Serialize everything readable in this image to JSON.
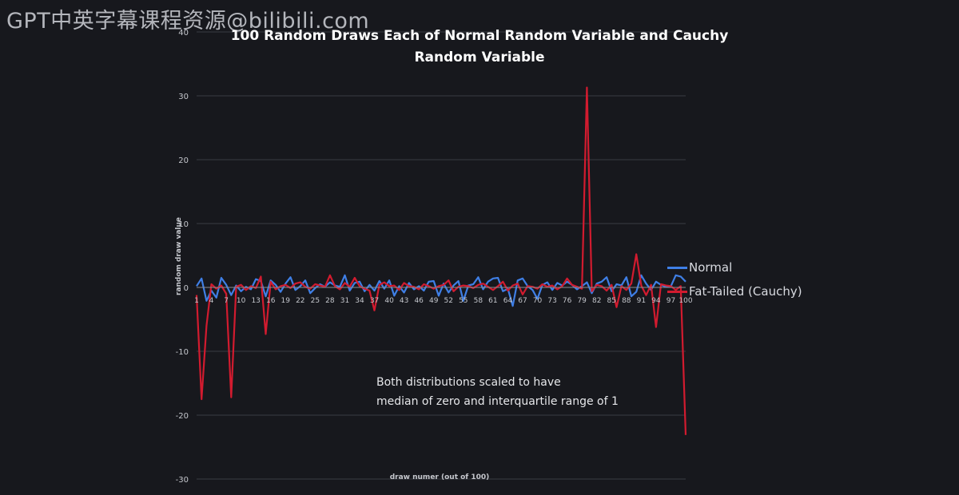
{
  "watermark": "GPT中英字幕课程资源@bilibili.com",
  "chart_data": {
    "type": "line",
    "title_line1": "100 Random Draws Each of Normal Random Variable and Cauchy",
    "title_line2": "Random Variable",
    "xlabel": "draw numer (out of 100)",
    "ylabel": "random draw value",
    "ylim": [
      -30,
      40
    ],
    "yticks": [
      -30,
      -20,
      -10,
      0,
      10,
      20,
      30,
      40
    ],
    "x": [
      1,
      2,
      3,
      4,
      5,
      6,
      7,
      8,
      9,
      10,
      11,
      12,
      13,
      14,
      15,
      16,
      17,
      18,
      19,
      20,
      21,
      22,
      23,
      24,
      25,
      26,
      27,
      28,
      29,
      30,
      31,
      32,
      33,
      34,
      35,
      36,
      37,
      38,
      39,
      40,
      41,
      42,
      43,
      44,
      45,
      46,
      47,
      48,
      49,
      50,
      51,
      52,
      53,
      54,
      55,
      56,
      57,
      58,
      59,
      60,
      61,
      62,
      63,
      64,
      65,
      66,
      67,
      68,
      69,
      70,
      71,
      72,
      73,
      74,
      75,
      76,
      77,
      78,
      79,
      80,
      81,
      82,
      83,
      84,
      85,
      86,
      87,
      88,
      89,
      90,
      91,
      92,
      93,
      94,
      95,
      96,
      97,
      98,
      99,
      100
    ],
    "xtick_labels": [
      "1",
      "4",
      "7",
      "10",
      "13",
      "16",
      "19",
      "22",
      "25",
      "28",
      "31",
      "34",
      "37",
      "40",
      "43",
      "46",
      "49",
      "52",
      "55",
      "58",
      "61",
      "64",
      "67",
      "70",
      "73",
      "76",
      "79",
      "82",
      "85",
      "88",
      "91",
      "94",
      "97",
      "100"
    ],
    "grid": true,
    "legend_position": "right",
    "series": [
      {
        "name": "Normal",
        "color": "#3f7fe6",
        "values": [
          0.2,
          1.4,
          -2.1,
          -0.5,
          -1.6,
          1.5,
          0.4,
          -1.2,
          0.3,
          -0.6,
          0.1,
          -0.3,
          1.3,
          1.0,
          -1.4,
          1.1,
          0.4,
          -0.7,
          0.6,
          1.6,
          -0.4,
          0.2,
          1.1,
          -0.9,
          -0.1,
          0.5,
          0.1,
          0.8,
          0.3,
          0.1,
          1.9,
          -0.5,
          0.7,
          0.9,
          -0.6,
          0.4,
          -0.5,
          1.0,
          -0.2,
          1.1,
          -1.3,
          0.2,
          -0.8,
          0.7,
          -0.3,
          0.2,
          -0.5,
          0.9,
          1.0,
          -1.3,
          0.6,
          -0.8,
          0.3,
          1.0,
          -2.1,
          0.3,
          0.5,
          1.6,
          -0.3,
          0.9,
          1.4,
          1.5,
          -0.6,
          -0.2,
          -2.9,
          1.1,
          1.4,
          0.2,
          -0.4,
          -1.8,
          0.4,
          0.8,
          -0.4,
          0.7,
          0.3,
          0.9,
          0.4,
          -0.3,
          0.2,
          0.8,
          -0.9,
          0.6,
          0.9,
          1.6,
          -0.6,
          0.5,
          0.3,
          1.6,
          -1.4,
          -0.7,
          1.9,
          0.6,
          -0.4,
          0.9,
          0.4,
          0.1,
          0.2,
          1.9,
          1.7,
          0.9
        ]
      },
      {
        "name": "Fat-Tailed (Cauchy)",
        "color": "#d21b2f",
        "values": [
          -1.2,
          -17.5,
          -6.0,
          0.5,
          -0.2,
          0.3,
          -1.0,
          -17.2,
          0.1,
          0.4,
          -0.4,
          0.2,
          -0.1,
          1.7,
          -7.3,
          0.9,
          -0.3,
          0.2,
          0.4,
          -0.1,
          0.6,
          0.8,
          0.1,
          -0.2,
          0.5,
          0.3,
          0.1,
          1.9,
          0.2,
          -0.3,
          0.7,
          0.1,
          1.5,
          0.2,
          -0.2,
          -0.5,
          -3.6,
          0.4,
          0.8,
          0.2,
          0.3,
          -0.4,
          0.7,
          0.2,
          0.1,
          -0.3,
          0.5,
          0.2,
          -0.2,
          0.2,
          0.4,
          1.1,
          -0.6,
          0.1,
          0.3,
          0.2,
          -0.1,
          0.4,
          0.6,
          0.1,
          -0.4,
          0.2,
          0.9,
          -0.5,
          0.3,
          0.6,
          -1.1,
          0.2,
          0.1,
          -0.2,
          0.5,
          0.1,
          0.3,
          -0.3,
          0.2,
          1.4,
          0.4,
          0.1,
          -0.2,
          31.3,
          -0.6,
          0.4,
          0.2,
          -0.5,
          0.4,
          -3.1,
          0.2,
          -0.4,
          0.6,
          5.2,
          0.3,
          -1.2,
          0.4,
          -6.2,
          0.5,
          0.3,
          0.2,
          -0.4,
          0.2,
          -23.1
        ]
      }
    ],
    "annotation_line1": "Both distributions scaled to have",
    "annotation_line2": "median of zero and interquartile range of 1"
  }
}
